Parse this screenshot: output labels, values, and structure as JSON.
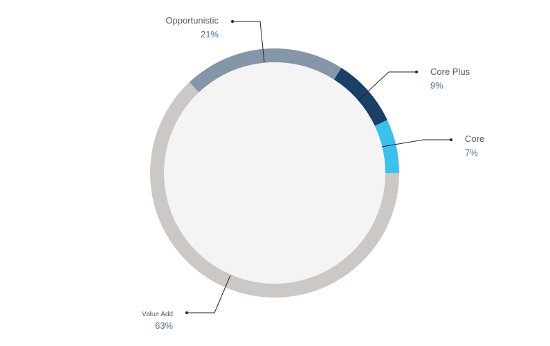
{
  "chart_data": {
    "type": "donut",
    "categories": [
      "Core",
      "Core Plus",
      "Opportunistic",
      "Value Add"
    ],
    "values": [
      7,
      9,
      21,
      63
    ],
    "value_labels": [
      "7%",
      "9%",
      "21%",
      "63%"
    ],
    "colors": [
      "#3bc1ee",
      "#1b3f66",
      "#8496a7",
      "#cbc8c5"
    ]
  }
}
